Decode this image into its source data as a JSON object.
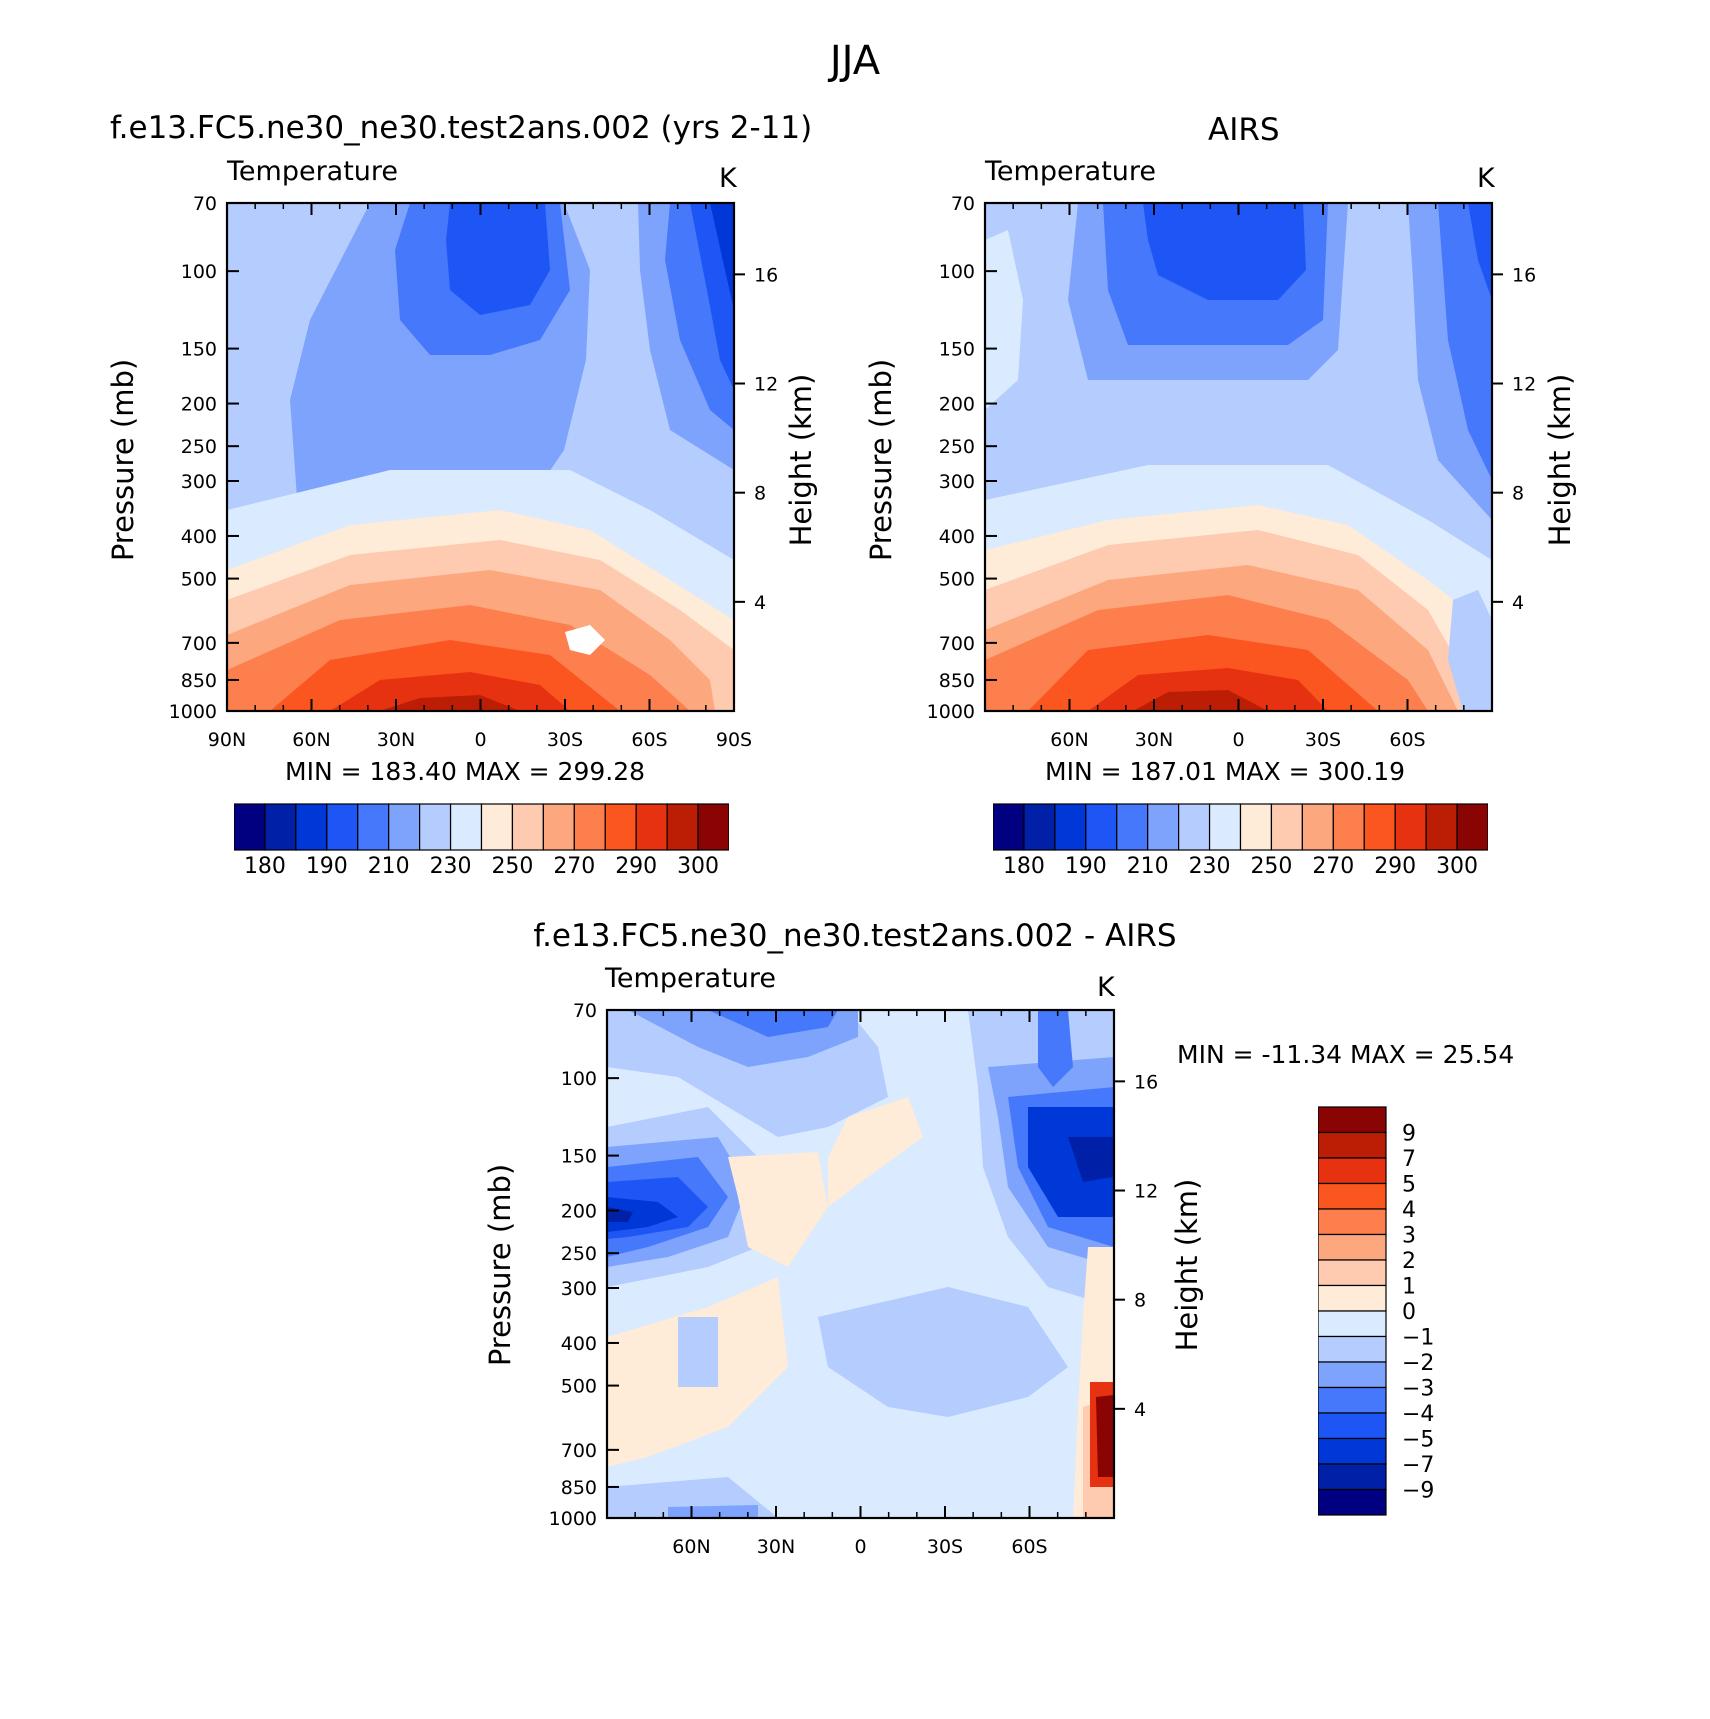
{
  "figure_title": "JJA",
  "colors": {
    "abs_scale": [
      "#000080",
      "#0020a8",
      "#0038d8",
      "#1e55f5",
      "#4678fc",
      "#7ea3fd",
      "#b4ccfe",
      "#daeaff",
      "#feebd8",
      "#fecab0",
      "#fda77f",
      "#fd7f4e",
      "#fb5520",
      "#e63210",
      "#bc1e05",
      "#8a0404"
    ],
    "diff_scale": [
      "#000080",
      "#0020a8",
      "#0038d8",
      "#1e55f5",
      "#4678fc",
      "#7ea3fd",
      "#b4ccfe",
      "#daeaff",
      "#feebd8",
      "#fecab0",
      "#fda77f",
      "#fd7f4e",
      "#fb5520",
      "#e63210",
      "#bc1e05",
      "#8a0404"
    ]
  },
  "panels": {
    "model": {
      "title": "f.e13.FC5.ne30_ne30.test2ans.002 (yrs 2-11)",
      "variable": "Temperature",
      "units": "K",
      "ylabel": "Pressure (mb)",
      "ylabel_right": "Height (km)",
      "minmax": "MIN = 183.40   MAX = 299.28"
    },
    "obs": {
      "title": "AIRS",
      "variable": "Temperature",
      "units": "K",
      "ylabel": "Pressure (mb)",
      "ylabel_right": "Height (km)",
      "minmax": "MIN = 187.01   MAX = 300.19"
    },
    "diff": {
      "title": "f.e13.FC5.ne30_ne30.test2ans.002 - AIRS",
      "variable": "Temperature",
      "units": "K",
      "ylabel": "Pressure (mb)",
      "ylabel_right": "Height (km)",
      "minmax": "MIN = -11.34   MAX =   25.54"
    }
  },
  "chart_data": [
    {
      "type": "heatmap",
      "name": "model",
      "x_ticks": [
        "90N",
        "60N",
        "30N",
        "0",
        "30S",
        "60S",
        "90S"
      ],
      "x_values": [
        90,
        60,
        30,
        0,
        -30,
        -60,
        -90
      ],
      "y_ticks": [
        "70",
        "100",
        "150",
        "200",
        "250",
        "300",
        "400",
        "500",
        "700",
        "850",
        "1000"
      ],
      "y_values": [
        70,
        100,
        150,
        200,
        250,
        300,
        400,
        500,
        700,
        850,
        1000
      ],
      "y_scale": "log",
      "height_ticks": [
        "16",
        "12",
        "8",
        "4"
      ],
      "height_values": [
        16,
        12,
        8,
        4
      ],
      "colorbar_labels": [
        "180",
        "190",
        "210",
        "230",
        "250",
        "270",
        "290",
        "300"
      ],
      "contour_levels": [
        180,
        185,
        190,
        200,
        210,
        220,
        230,
        240,
        250,
        260,
        270,
        280,
        290,
        295,
        300
      ],
      "min": 183.4,
      "max": 299.28,
      "units": "K"
    },
    {
      "type": "heatmap",
      "name": "obs",
      "x_ticks": [
        "60N",
        "30N",
        "0",
        "30S",
        "60S"
      ],
      "x_values": [
        60,
        30,
        0,
        -30,
        -60
      ],
      "y_ticks": [
        "70",
        "100",
        "150",
        "200",
        "250",
        "300",
        "400",
        "500",
        "700",
        "850",
        "1000"
      ],
      "y_values": [
        70,
        100,
        150,
        200,
        250,
        300,
        400,
        500,
        700,
        850,
        1000
      ],
      "y_scale": "log",
      "height_ticks": [
        "16",
        "12",
        "8",
        "4"
      ],
      "height_values": [
        16,
        12,
        8,
        4
      ],
      "colorbar_labels": [
        "180",
        "190",
        "210",
        "230",
        "250",
        "270",
        "290",
        "300"
      ],
      "contour_levels": [
        180,
        185,
        190,
        200,
        210,
        220,
        230,
        240,
        250,
        260,
        270,
        280,
        290,
        295,
        300
      ],
      "min": 187.01,
      "max": 300.19,
      "units": "K"
    },
    {
      "type": "heatmap",
      "name": "difference",
      "x_ticks": [
        "60N",
        "30N",
        "0",
        "30S",
        "60S"
      ],
      "x_values": [
        60,
        30,
        0,
        -30,
        -60
      ],
      "y_ticks": [
        "70",
        "100",
        "150",
        "200",
        "250",
        "300",
        "400",
        "500",
        "700",
        "850",
        "1000"
      ],
      "y_values": [
        70,
        100,
        150,
        200,
        250,
        300,
        400,
        500,
        700,
        850,
        1000
      ],
      "y_scale": "log",
      "height_ticks": [
        "16",
        "12",
        "8",
        "4"
      ],
      "height_values": [
        16,
        12,
        8,
        4
      ],
      "colorbar_labels": [
        "9",
        "7",
        "5",
        "4",
        "3",
        "2",
        "1",
        "0",
        "−1",
        "−2",
        "−3",
        "−4",
        "−5",
        "−7",
        "−9"
      ],
      "contour_levels": [
        -9,
        -7,
        -5,
        -4,
        -3,
        -2,
        -1,
        0,
        1,
        2,
        3,
        4,
        5,
        7,
        9
      ],
      "min": -11.34,
      "max": 25.54,
      "units": "K"
    }
  ]
}
